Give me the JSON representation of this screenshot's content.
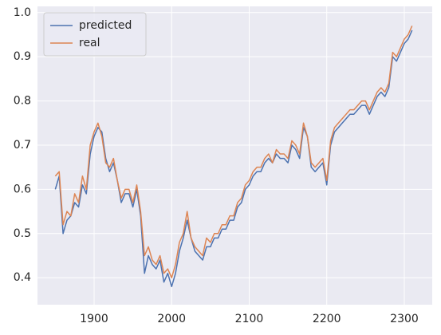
{
  "chart_data": {
    "type": "line",
    "x": [
      1850,
      1855,
      1860,
      1865,
      1870,
      1875,
      1880,
      1885,
      1890,
      1895,
      1900,
      1905,
      1910,
      1915,
      1920,
      1925,
      1930,
      1935,
      1940,
      1945,
      1950,
      1955,
      1960,
      1965,
      1970,
      1975,
      1980,
      1985,
      1990,
      1995,
      2000,
      2005,
      2010,
      2015,
      2020,
      2025,
      2030,
      2035,
      2040,
      2045,
      2050,
      2055,
      2060,
      2065,
      2070,
      2075,
      2080,
      2085,
      2090,
      2095,
      2100,
      2105,
      2110,
      2115,
      2120,
      2125,
      2130,
      2135,
      2140,
      2145,
      2150,
      2155,
      2160,
      2165,
      2170,
      2175,
      2180,
      2185,
      2190,
      2195,
      2200,
      2205,
      2210,
      2215,
      2220,
      2225,
      2230,
      2235,
      2240,
      2245,
      2250,
      2255,
      2260,
      2265,
      2270,
      2275,
      2280,
      2285,
      2290,
      2295,
      2300,
      2305,
      2310
    ],
    "series": [
      {
        "name": "predicted",
        "color": "#4c72b0",
        "values": [
          0.6,
          0.63,
          0.5,
          0.53,
          0.54,
          0.57,
          0.56,
          0.61,
          0.59,
          0.68,
          0.72,
          0.74,
          0.73,
          0.67,
          0.64,
          0.66,
          0.62,
          0.57,
          0.59,
          0.59,
          0.56,
          0.6,
          0.54,
          0.41,
          0.45,
          0.43,
          0.42,
          0.44,
          0.39,
          0.41,
          0.38,
          0.41,
          0.46,
          0.49,
          0.53,
          0.49,
          0.46,
          0.45,
          0.44,
          0.47,
          0.47,
          0.49,
          0.49,
          0.51,
          0.51,
          0.53,
          0.53,
          0.56,
          0.57,
          0.6,
          0.61,
          0.63,
          0.64,
          0.64,
          0.66,
          0.67,
          0.66,
          0.68,
          0.67,
          0.67,
          0.66,
          0.7,
          0.69,
          0.67,
          0.74,
          0.72,
          0.65,
          0.64,
          0.65,
          0.66,
          0.61,
          0.7,
          0.73,
          0.74,
          0.75,
          0.76,
          0.77,
          0.77,
          0.78,
          0.79,
          0.79,
          0.77,
          0.79,
          0.81,
          0.82,
          0.81,
          0.83,
          0.9,
          0.89,
          0.91,
          0.93,
          0.94,
          0.96
        ]
      },
      {
        "name": "real",
        "color": "#dd8452",
        "values": [
          0.63,
          0.64,
          0.52,
          0.55,
          0.54,
          0.59,
          0.57,
          0.63,
          0.6,
          0.7,
          0.73,
          0.75,
          0.72,
          0.66,
          0.65,
          0.67,
          0.62,
          0.58,
          0.6,
          0.6,
          0.57,
          0.61,
          0.55,
          0.45,
          0.47,
          0.44,
          0.43,
          0.45,
          0.41,
          0.42,
          0.4,
          0.43,
          0.48,
          0.5,
          0.55,
          0.49,
          0.47,
          0.46,
          0.45,
          0.49,
          0.48,
          0.5,
          0.5,
          0.52,
          0.52,
          0.54,
          0.54,
          0.57,
          0.58,
          0.61,
          0.62,
          0.64,
          0.65,
          0.65,
          0.67,
          0.68,
          0.66,
          0.69,
          0.68,
          0.68,
          0.67,
          0.71,
          0.7,
          0.68,
          0.75,
          0.72,
          0.66,
          0.65,
          0.66,
          0.67,
          0.62,
          0.71,
          0.74,
          0.75,
          0.76,
          0.77,
          0.78,
          0.78,
          0.79,
          0.8,
          0.8,
          0.78,
          0.8,
          0.82,
          0.83,
          0.82,
          0.84,
          0.91,
          0.9,
          0.92,
          0.94,
          0.95,
          0.97
        ]
      }
    ],
    "xlim": [
      1827,
      2336
    ],
    "xticks": [
      1900,
      2000,
      2100,
      2200,
      2300
    ],
    "ylim": [
      0.339,
      1.014
    ],
    "yticks": [
      0.4,
      0.5,
      0.6,
      0.7,
      0.8,
      0.9,
      {
        "value": 1,
        "label": "1.0"
      }
    ],
    "grid": true,
    "legend": "upper left"
  }
}
